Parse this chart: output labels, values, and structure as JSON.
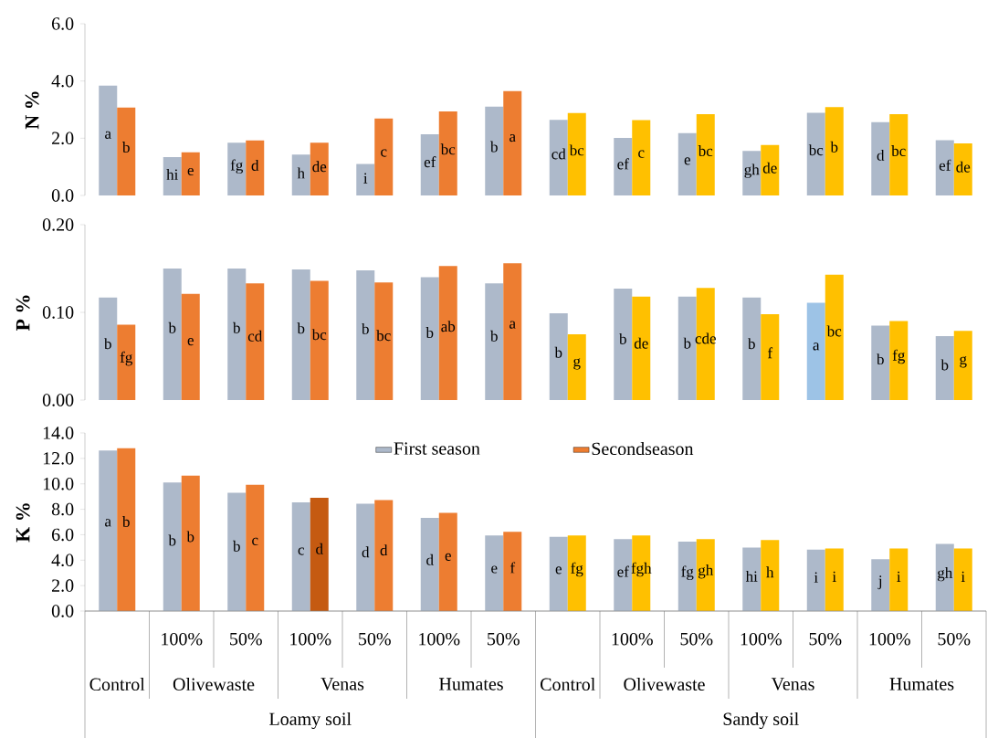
{
  "chart_data": [
    {
      "type": "bar",
      "ylabel": "N %",
      "tick_labels": "y",
      "ylim": [
        0,
        6
      ],
      "yticks": [
        {
          "value": 0,
          "label": "0.0"
        },
        {
          "value": 2,
          "label": "2.0"
        },
        {
          "value": 4,
          "label": "4.0"
        },
        {
          "value": 6,
          "label": "6.0"
        }
      ],
      "series": [
        {
          "colors": [
            "#adb9ca",
            "#adb9ca",
            "#adb9ca",
            "#adb9ca",
            "#adb9ca",
            "#adb9ca",
            "#adb9ca",
            "#adb9ca",
            "#adb9ca",
            "#adb9ca",
            "#adb9ca",
            "#adb9ca",
            "#adb9ca",
            "#adb9ca"
          ],
          "values": [
            3.84,
            1.34,
            1.84,
            1.43,
            1.1,
            2.14,
            3.1,
            2.64,
            2.01,
            2.18,
            1.56,
            2.89,
            2.56,
            1.93
          ],
          "value_labels": [
            "a",
            "hi",
            "fg",
            "h",
            "i",
            "ef",
            "b",
            "cd",
            "ef",
            "e",
            "gh",
            "bc",
            "d",
            "ef"
          ]
        },
        {
          "colors": [
            "#ed7d31",
            "#ed7d31",
            "#ed7d31",
            "#ed7d31",
            "#ed7d31",
            "#ed7d31",
            "#ed7d31",
            "#ffc000",
            "#ffc000",
            "#ffc000",
            "#ffc000",
            "#ffc000",
            "#ffc000",
            "#ffc000"
          ],
          "values": [
            3.07,
            1.51,
            1.92,
            1.84,
            2.69,
            2.94,
            3.65,
            2.88,
            2.63,
            2.84,
            1.76,
            3.09,
            2.84,
            1.82
          ],
          "value_labels": [
            "b",
            "e",
            "d",
            "de",
            "c",
            "bc",
            "a",
            "bc",
            "c",
            "bc",
            "de",
            "b",
            "bc",
            "de"
          ]
        }
      ]
    },
    {
      "type": "bar",
      "ylabel": "P %",
      "tick_labels": "y",
      "ylim": [
        0,
        0.2
      ],
      "yticks": [
        {
          "value": 0,
          "label": "0.00"
        },
        {
          "value": 0.1,
          "label": "0.10"
        },
        {
          "value": 0.2,
          "label": "0.20"
        }
      ],
      "series": [
        {
          "colors": [
            "#adb9ca",
            "#adb9ca",
            "#adb9ca",
            "#adb9ca",
            "#adb9ca",
            "#adb9ca",
            "#adb9ca",
            "#adb9ca",
            "#adb9ca",
            "#adb9ca",
            "#adb9ca",
            "#9dc3e6",
            "#adb9ca",
            "#adb9ca"
          ],
          "values": [
            0.117,
            0.15,
            0.15,
            0.149,
            0.148,
            0.14,
            0.133,
            0.099,
            0.127,
            0.118,
            0.117,
            0.111,
            0.085,
            0.073
          ],
          "value_labels": [
            "b",
            "b",
            "b",
            "b",
            "b",
            "b",
            "b",
            "b",
            "b",
            "b",
            "b",
            "a",
            "b",
            "b"
          ]
        },
        {
          "colors": [
            "#ed7d31",
            "#ed7d31",
            "#ed7d31",
            "#ed7d31",
            "#ed7d31",
            "#ed7d31",
            "#ed7d31",
            "#ffc000",
            "#ffc000",
            "#ffc000",
            "#ffc000",
            "#ffc000",
            "#ffc000",
            "#ffc000"
          ],
          "values": [
            0.086,
            0.121,
            0.133,
            0.136,
            0.134,
            0.153,
            0.156,
            0.075,
            0.118,
            0.128,
            0.098,
            0.143,
            0.09,
            0.079
          ],
          "value_labels": [
            "fg",
            "e",
            "cd",
            "bc",
            "bc",
            "ab",
            "a",
            "g",
            "de",
            "cde",
            "f",
            "bc",
            "fg",
            "g"
          ]
        }
      ]
    },
    {
      "type": "bar",
      "ylabel": "K %",
      "legend": "top",
      "categories": [
        null,
        "100%",
        "50%",
        "100%",
        "50%",
        "100%",
        "50%",
        null,
        "100%",
        "50%",
        "100%",
        "50%",
        "100%",
        "50%"
      ],
      "ylim": [
        0,
        14
      ],
      "yticks": [
        {
          "value": 0,
          "label": "0.0"
        },
        {
          "value": 2,
          "label": "2.0"
        },
        {
          "value": 4,
          "label": "4.0"
        },
        {
          "value": 6,
          "label": "6.0"
        },
        {
          "value": 8,
          "label": "8.0"
        },
        {
          "value": 10,
          "label": "10.0"
        },
        {
          "value": 12,
          "label": "12.0"
        },
        {
          "value": 14,
          "label": "14.0"
        }
      ],
      "series": [
        {
          "name": "First season",
          "color": "#adb9ca",
          "colors": [
            "#adb9ca",
            "#adb9ca",
            "#adb9ca",
            "#adb9ca",
            "#adb9ca",
            "#adb9ca",
            "#adb9ca",
            "#adb9ca",
            "#adb9ca",
            "#adb9ca",
            "#adb9ca",
            "#adb9ca",
            "#adb9ca",
            "#adb9ca"
          ],
          "values": [
            12.61,
            10.11,
            9.29,
            8.54,
            8.44,
            7.33,
            5.94,
            5.83,
            5.66,
            5.45,
            4.99,
            4.82,
            4.08,
            5.27
          ],
          "value_labels": [
            "a",
            "b",
            "b",
            "c",
            "d",
            "d",
            "e",
            "e",
            "ef",
            "fg",
            "hi",
            "i",
            "j",
            "gh"
          ]
        },
        {
          "name": "Secondseason",
          "color": "#ed7d31",
          "colors": [
            "#ed7d31",
            "#ed7d31",
            "#ed7d31",
            "#c55a11",
            "#ed7d31",
            "#ed7d31",
            "#ed7d31",
            "#ffc000",
            "#ffc000",
            "#ffc000",
            "#ffc000",
            "#ffc000",
            "#ffc000",
            "#ffc000"
          ],
          "values": [
            12.79,
            10.65,
            9.93,
            8.9,
            8.72,
            7.72,
            6.22,
            5.94,
            5.94,
            5.66,
            5.58,
            4.92,
            4.92,
            4.92
          ],
          "value_labels": [
            "b",
            "b",
            "c",
            "d",
            "d",
            "e",
            "f",
            "fg",
            "fgh",
            "gh",
            "h",
            "i",
            "i",
            "i"
          ]
        }
      ],
      "annotations": [
        "Control",
        "Olivewaste",
        "Venas",
        "Humates",
        "Control",
        "Olivewaste",
        "Venas",
        "Humates",
        "Loamy soil",
        "Sandy soil"
      ]
    }
  ]
}
